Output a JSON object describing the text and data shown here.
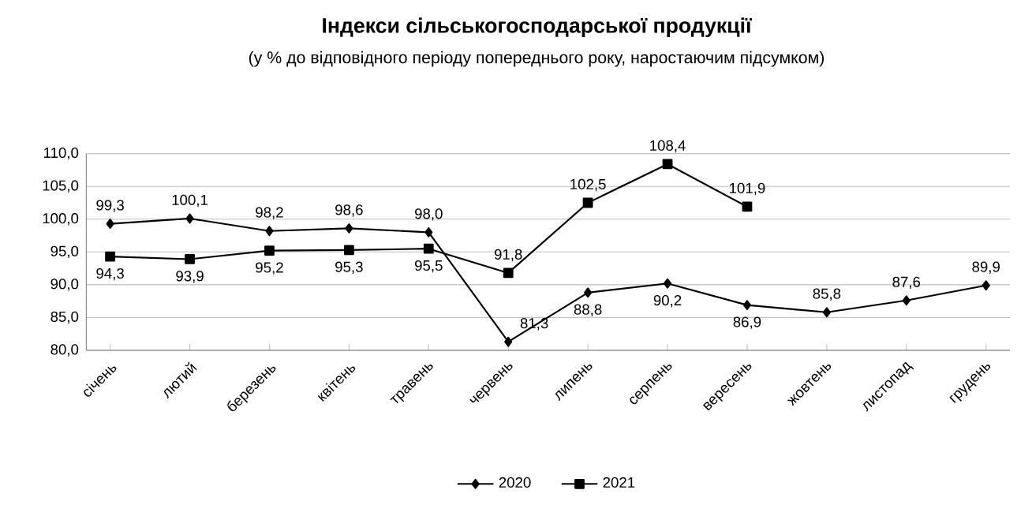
{
  "chart_data": {
    "type": "line",
    "title": "Індекси сільськогосподарської продукції",
    "subtitle": "(у % до відповідного періоду попереднього року, наростаючим підсумком)",
    "categories": [
      "січень",
      "лютий",
      "березень",
      "квітень",
      "травень",
      "червень",
      "липень",
      "серпень",
      "вересень",
      "жовтень",
      "листопад",
      "грудень"
    ],
    "series": [
      {
        "name": "2020",
        "color": "#000000",
        "marker": "diamond",
        "values": [
          99.3,
          100.1,
          98.2,
          98.6,
          98.0,
          81.3,
          88.8,
          90.2,
          86.9,
          85.8,
          87.6,
          89.9
        ],
        "value_labels": [
          "99,3",
          "100,1",
          "98,2",
          "98,6",
          "98,0",
          "81,3",
          "88,8",
          "90,2",
          "86,9",
          "85,8",
          "87,6",
          "89,9"
        ]
      },
      {
        "name": "2021",
        "color": "#000000",
        "marker": "square",
        "values": [
          94.3,
          93.9,
          95.2,
          95.3,
          95.5,
          91.8,
          102.5,
          108.4,
          101.9,
          null,
          null,
          null
        ],
        "value_labels": [
          "94,3",
          "93,9",
          "95,2",
          "95,3",
          "95,5",
          "91,8",
          "102,5",
          "108,4",
          "101,9",
          null,
          null,
          null
        ]
      }
    ],
    "ylim": [
      80,
      110
    ],
    "yticks": [
      {
        "value": 80,
        "label": "80,0"
      },
      {
        "value": 85,
        "label": "85,0"
      },
      {
        "value": 90,
        "label": "90,0"
      },
      {
        "value": 95,
        "label": "95,0"
      },
      {
        "value": 100,
        "label": "100,0"
      },
      {
        "value": 105,
        "label": "105,0"
      },
      {
        "value": 110,
        "label": "110,0"
      }
    ],
    "grid": "y",
    "legend": "bottom"
  }
}
